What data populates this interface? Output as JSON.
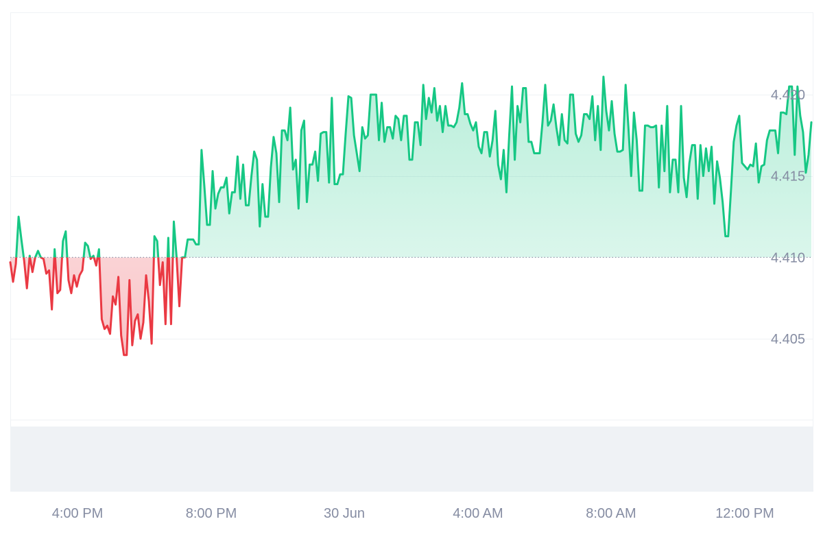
{
  "chart_data": {
    "type": "area",
    "baseline": 4.41,
    "ylim": [
      4.4,
      4.4205
    ],
    "y_ticks": [
      "4.405",
      "4.410",
      "4.415",
      "4.420"
    ],
    "x_ticks": [
      "4:00 PM",
      "8:00 PM",
      "30 Jun",
      "4:00 AM",
      "8:00 AM",
      "12:00 PM"
    ],
    "colors": {
      "up_line": "#16c784",
      "down_line": "#ea3943",
      "grid": "#eff2f5",
      "axis_text": "#858ca2",
      "volume": "#eff2f5"
    },
    "series": [
      {
        "values": [
          4.4097,
          4.4085,
          4.4096,
          4.4125,
          4.4111,
          4.4098,
          4.4081,
          4.4101,
          4.4091,
          4.41,
          4.4104,
          4.41,
          4.4099,
          4.409,
          4.4092,
          4.4068,
          4.4105,
          4.4078,
          4.408,
          4.411,
          4.4116,
          4.4086,
          4.4078,
          4.4089,
          4.4082,
          4.4089,
          4.4092,
          4.4109,
          4.4107,
          4.4099,
          4.4101,
          4.4095,
          4.4105,
          4.4062,
          4.4056,
          4.4058,
          4.4053,
          4.4076,
          4.4071,
          4.4088,
          4.4052,
          4.404,
          4.404,
          4.4086,
          4.4046,
          4.4061,
          4.4065,
          4.405,
          4.406,
          4.4089,
          4.4073,
          4.4047,
          4.4113,
          4.411,
          4.4083,
          4.4097,
          4.4059,
          4.4112,
          4.4059,
          4.4122,
          4.41,
          4.407,
          4.41,
          4.41,
          4.4111,
          4.4111,
          4.4111,
          4.4108,
          4.4108,
          4.4166,
          4.4144,
          4.412,
          4.412,
          4.4153,
          4.413,
          4.4139,
          4.4143,
          4.4143,
          4.4149,
          4.4127,
          4.414,
          4.414,
          4.4162,
          4.4136,
          4.4157,
          4.4132,
          4.4132,
          4.415,
          4.4165,
          4.416,
          4.4119,
          4.4145,
          4.4125,
          4.4125,
          4.4155,
          4.4174,
          4.4164,
          4.4134,
          4.4178,
          4.4178,
          4.4172,
          4.4192,
          4.4154,
          4.416,
          4.413,
          4.4178,
          4.4184,
          4.4134,
          4.4157,
          4.4157,
          4.4165,
          4.4147,
          4.4176,
          4.4177,
          4.4177,
          4.4146,
          4.4198,
          4.4145,
          4.4145,
          4.4151,
          4.4151,
          4.4176,
          4.4199,
          4.4198,
          4.4175,
          4.4164,
          4.4153,
          4.418,
          4.4173,
          4.4175,
          4.42,
          4.42,
          4.42,
          4.4172,
          4.4195,
          4.4171,
          4.418,
          4.418,
          4.4173,
          4.4187,
          4.4185,
          4.4172,
          4.4187,
          4.4187,
          4.416,
          4.416,
          4.4183,
          4.4183,
          4.4169,
          4.4206,
          4.4185,
          4.4198,
          4.4189,
          4.4204,
          4.4184,
          4.4193,
          4.4177,
          4.4193,
          4.4181,
          4.4181,
          4.418,
          4.4183,
          4.4192,
          4.4207,
          4.4188,
          4.4188,
          4.4182,
          4.4178,
          4.4183,
          4.4168,
          4.4164,
          4.4177,
          4.4177,
          4.4162,
          4.4172,
          4.419,
          4.4157,
          4.4148,
          4.4166,
          4.414,
          4.4175,
          4.4205,
          4.416,
          4.4193,
          4.4183,
          4.4204,
          4.4204,
          4.4171,
          4.4171,
          4.4164,
          4.4164,
          4.4164,
          4.4183,
          4.4206,
          4.4181,
          4.4184,
          4.4194,
          4.418,
          4.4169,
          4.4188,
          4.4172,
          4.417,
          4.42,
          4.42,
          4.4176,
          4.4171,
          4.4175,
          4.4188,
          4.4188,
          4.4185,
          4.4199,
          4.4172,
          4.4193,
          4.4166,
          4.4211,
          4.419,
          4.4178,
          4.4196,
          4.4176,
          4.4165,
          4.4165,
          4.4166,
          4.4206,
          4.418,
          4.415,
          4.4189,
          4.4172,
          4.4141,
          4.4141,
          4.4181,
          4.4181,
          4.418,
          4.418,
          4.4181,
          4.4143,
          4.4181,
          4.4153,
          4.4193,
          4.414,
          4.416,
          4.416,
          4.414,
          4.4193,
          4.4149,
          4.4137,
          4.4158,
          4.4169,
          4.4169,
          4.4136,
          4.4169,
          4.415,
          4.4167,
          4.4153,
          4.4168,
          4.4133,
          4.4159,
          4.4149,
          4.4134,
          4.4113,
          4.4113,
          4.4141,
          4.4171,
          4.4181,
          4.4187,
          4.4158,
          4.4156,
          4.4154,
          4.4157,
          4.4156,
          4.417,
          4.4146,
          4.4156,
          4.4157,
          4.4172,
          4.4178,
          4.4178,
          4.4178,
          4.4164,
          4.4189,
          4.4189,
          4.4188,
          4.4205,
          4.4205,
          4.4163,
          4.4205,
          4.4187,
          4.4177,
          4.4152,
          4.4163,
          4.4183
        ]
      }
    ]
  }
}
